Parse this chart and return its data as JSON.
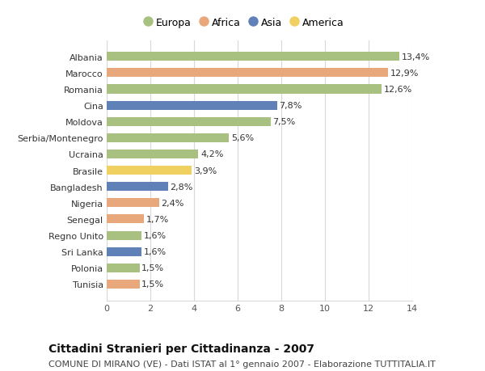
{
  "countries": [
    "Tunisia",
    "Polonia",
    "Sri Lanka",
    "Regno Unito",
    "Senegal",
    "Nigeria",
    "Bangladesh",
    "Brasile",
    "Ucraina",
    "Serbia/Montenegro",
    "Moldova",
    "Cina",
    "Romania",
    "Marocco",
    "Albania"
  ],
  "values": [
    1.5,
    1.5,
    1.6,
    1.6,
    1.7,
    2.4,
    2.8,
    3.9,
    4.2,
    5.6,
    7.5,
    7.8,
    12.6,
    12.9,
    13.4
  ],
  "regions": [
    "Africa",
    "Europa",
    "Asia",
    "Europa",
    "Africa",
    "Africa",
    "Asia",
    "America",
    "Europa",
    "Europa",
    "Europa",
    "Asia",
    "Europa",
    "Africa",
    "Europa"
  ],
  "labels": [
    "1,5%",
    "1,5%",
    "1,6%",
    "1,6%",
    "1,7%",
    "2,4%",
    "2,8%",
    "3,9%",
    "4,2%",
    "5,6%",
    "7,5%",
    "7,8%",
    "12,6%",
    "12,9%",
    "13,4%"
  ],
  "colors": {
    "Europa": "#a8c080",
    "Africa": "#e8a87c",
    "Asia": "#6080b8",
    "America": "#f0d060"
  },
  "legend_order": [
    "Europa",
    "Africa",
    "Asia",
    "America"
  ],
  "xlim": [
    0,
    14
  ],
  "xticks": [
    0,
    2,
    4,
    6,
    8,
    10,
    12,
    14
  ],
  "title": "Cittadini Stranieri per Cittadinanza - 2007",
  "subtitle": "COMUNE DI MIRANO (VE) - Dati ISTAT al 1° gennaio 2007 - Elaborazione TUTTITALIA.IT",
  "background_color": "#ffffff",
  "bar_height": 0.55,
  "grid_color": "#d8d8d8",
  "title_fontsize": 10,
  "subtitle_fontsize": 8,
  "label_fontsize": 8,
  "tick_fontsize": 8
}
